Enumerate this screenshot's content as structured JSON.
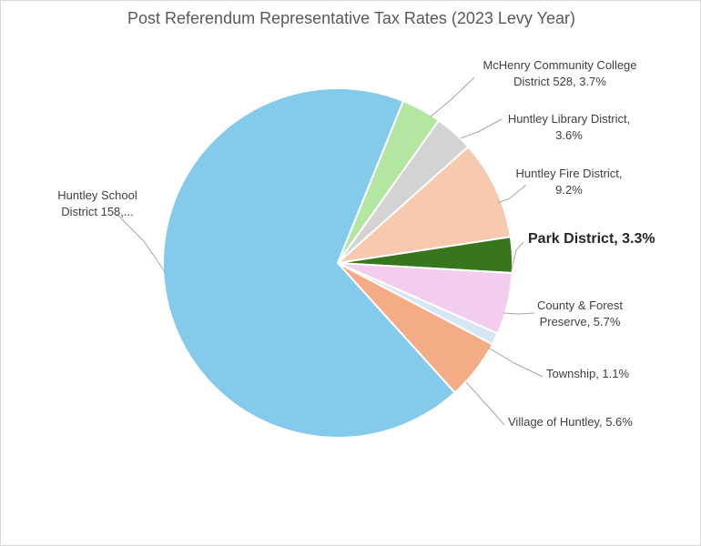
{
  "chart_data": {
    "type": "pie",
    "title": "Post Referendum Representative Tax Rates (2023 Levy Year)",
    "slices": [
      {
        "name": "McHenry Community College District 528",
        "value": 3.7,
        "label_lines": [
          "McHenry Community College",
          "District 528, 3.7%"
        ],
        "color": "#b3e6a0"
      },
      {
        "name": "Huntley Library District",
        "value": 3.6,
        "label_lines": [
          "Huntley Library District,",
          "3.6%"
        ],
        "color": "#d3d3d3"
      },
      {
        "name": "Huntley Fire District",
        "value": 9.2,
        "label_lines": [
          "Huntley Fire District,",
          "9.2%"
        ],
        "color": "#f7c9ae"
      },
      {
        "name": "Park District",
        "value": 3.3,
        "label_lines": [
          "Park District, 3.3%"
        ],
        "color": "#38761d",
        "bold": true
      },
      {
        "name": "County & Forest Preserve",
        "value": 5.7,
        "label_lines": [
          "County & Forest",
          "Preserve, 5.7%"
        ],
        "color": "#f2cdee"
      },
      {
        "name": "Township",
        "value": 1.1,
        "label_lines": [
          "Township, 1.1%"
        ],
        "color": "#d6e6f5"
      },
      {
        "name": "Village of Huntley",
        "value": 5.6,
        "label_lines": [
          "Village of Huntley, 5.6%"
        ],
        "color": "#f4ac86"
      },
      {
        "name": "Huntley School District 158",
        "value": 67.8,
        "label_lines": [
          "Huntley School",
          "District 158,..."
        ],
        "color": "#84cbeb"
      }
    ]
  }
}
